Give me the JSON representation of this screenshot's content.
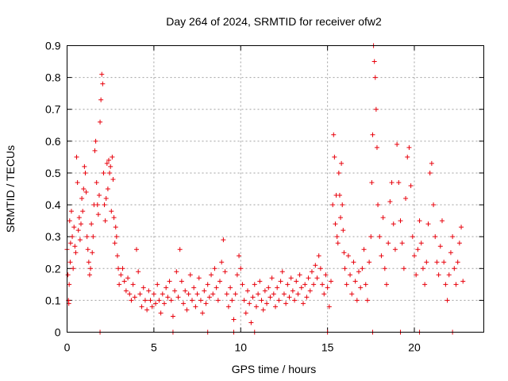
{
  "chart_data": {
    "type": "scatter",
    "title": "Day 264 of 2024, SRMTID for receiver ofw2",
    "xlabel": "GPS time / hours",
    "ylabel": "SRMTID / TECUs",
    "xlim": [
      0,
      24
    ],
    "ylim": [
      0,
      0.9
    ],
    "xticks": [
      0,
      5,
      10,
      15,
      20
    ],
    "yticks": [
      0,
      0.1,
      0.2,
      0.3,
      0.4,
      0.5,
      0.6,
      0.7,
      0.8,
      0.9
    ],
    "grid": true,
    "marker": "+",
    "color": "#e8000b",
    "series": [
      {
        "name": "ofw2",
        "points": [
          [
            0.0,
            0.26
          ],
          [
            0.05,
            0.18
          ],
          [
            0.08,
            0.1
          ],
          [
            0.1,
            0.09
          ],
          [
            0.12,
            0.15
          ],
          [
            0.15,
            0.35
          ],
          [
            0.18,
            0.22
          ],
          [
            0.2,
            0.28
          ],
          [
            0.25,
            0.38
          ],
          [
            0.3,
            0.3
          ],
          [
            0.35,
            0.2
          ],
          [
            0.4,
            0.33
          ],
          [
            0.45,
            0.27
          ],
          [
            0.5,
            0.25
          ],
          [
            0.55,
            0.55
          ],
          [
            0.6,
            0.47
          ],
          [
            0.65,
            0.32
          ],
          [
            0.7,
            0.36
          ],
          [
            0.75,
            0.29
          ],
          [
            0.8,
            0.34
          ],
          [
            0.85,
            0.42
          ],
          [
            0.9,
            0.38
          ],
          [
            0.95,
            0.45
          ],
          [
            1.0,
            0.52
          ],
          [
            1.05,
            0.5
          ],
          [
            1.1,
            0.44
          ],
          [
            1.15,
            0.3
          ],
          [
            1.2,
            0.26
          ],
          [
            1.25,
            0.22
          ],
          [
            1.3,
            0.18
          ],
          [
            1.35,
            0.2
          ],
          [
            1.4,
            0.34
          ],
          [
            1.45,
            0.25
          ],
          [
            1.5,
            0.3
          ],
          [
            1.55,
            0.4
          ],
          [
            1.6,
            0.57
          ],
          [
            1.65,
            0.6
          ],
          [
            1.7,
            0.47
          ],
          [
            1.75,
            0.4
          ],
          [
            1.8,
            0.37
          ],
          [
            1.85,
            0.43
          ],
          [
            1.9,
            0.66
          ],
          [
            1.95,
            0.73
          ],
          [
            2.0,
            0.81
          ],
          [
            2.05,
            0.78
          ],
          [
            2.1,
            0.5
          ],
          [
            2.15,
            0.4
          ],
          [
            2.2,
            0.35
          ],
          [
            2.25,
            0.42
          ],
          [
            2.3,
            0.53
          ],
          [
            2.35,
            0.45
          ],
          [
            2.4,
            0.54
          ],
          [
            2.45,
            0.5
          ],
          [
            2.5,
            0.52
          ],
          [
            2.55,
            0.38
          ],
          [
            2.6,
            0.55
          ],
          [
            2.65,
            0.48
          ],
          [
            2.7,
            0.36
          ],
          [
            2.75,
            0.28
          ],
          [
            2.8,
            0.33
          ],
          [
            2.85,
            0.3
          ],
          [
            2.9,
            0.24
          ],
          [
            2.95,
            0.2
          ],
          [
            3.0,
            0.15
          ],
          [
            3.1,
            0.18
          ],
          [
            3.2,
            0.2
          ],
          [
            3.3,
            0.16
          ],
          [
            3.4,
            0.13
          ],
          [
            3.5,
            0.17
          ],
          [
            3.6,
            0.12
          ],
          [
            3.7,
            0.1
          ],
          [
            3.8,
            0.15
          ],
          [
            3.9,
            0.11
          ],
          [
            4.0,
            0.26
          ],
          [
            4.1,
            0.19
          ],
          [
            4.2,
            0.12
          ],
          [
            4.3,
            0.08
          ],
          [
            4.4,
            0.14
          ],
          [
            4.5,
            0.1
          ],
          [
            4.6,
            0.07
          ],
          [
            4.7,
            0.13
          ],
          [
            4.8,
            0.1
          ],
          [
            4.9,
            0.08
          ],
          [
            5.0,
            0.12
          ],
          [
            5.1,
            0.09
          ],
          [
            5.2,
            0.15
          ],
          [
            5.3,
            0.1
          ],
          [
            5.4,
            0.06
          ],
          [
            5.5,
            0.12
          ],
          [
            5.6,
            0.09
          ],
          [
            5.7,
            0.14
          ],
          [
            5.8,
            0.11
          ],
          [
            5.9,
            0.16
          ],
          [
            6.0,
            0.1
          ],
          [
            6.1,
            0.05
          ],
          [
            6.2,
            0.13
          ],
          [
            6.3,
            0.19
          ],
          [
            6.4,
            0.11
          ],
          [
            6.5,
            0.26
          ],
          [
            6.6,
            0.16
          ],
          [
            6.7,
            0.09
          ],
          [
            6.8,
            0.13
          ],
          [
            6.9,
            0.07
          ],
          [
            7.0,
            0.12
          ],
          [
            7.1,
            0.18
          ],
          [
            7.2,
            0.1
          ],
          [
            7.3,
            0.14
          ],
          [
            7.4,
            0.08
          ],
          [
            7.5,
            0.12
          ],
          [
            7.6,
            0.17
          ],
          [
            7.7,
            0.1
          ],
          [
            7.8,
            0.06
          ],
          [
            7.9,
            0.13
          ],
          [
            8.0,
            0.09
          ],
          [
            8.1,
            0.15
          ],
          [
            8.2,
            0.11
          ],
          [
            8.3,
            0.18
          ],
          [
            8.4,
            0.12
          ],
          [
            8.5,
            0.2
          ],
          [
            8.6,
            0.14
          ],
          [
            8.7,
            0.1
          ],
          [
            8.8,
            0.16
          ],
          [
            8.9,
            0.22
          ],
          [
            9.0,
            0.29
          ],
          [
            9.1,
            0.19
          ],
          [
            9.2,
            0.12
          ],
          [
            9.3,
            0.08
          ],
          [
            9.4,
            0.14
          ],
          [
            9.5,
            0.1
          ],
          [
            9.6,
            0.04
          ],
          [
            9.7,
            0.12
          ],
          [
            9.8,
            0.18
          ],
          [
            9.9,
            0.24
          ],
          [
            10.0,
            0.2
          ],
          [
            10.1,
            0.15
          ],
          [
            10.2,
            0.1
          ],
          [
            10.3,
            0.06
          ],
          [
            10.4,
            0.13
          ],
          [
            10.5,
            0.09
          ],
          [
            10.6,
            0.03
          ],
          [
            10.7,
            0.11
          ],
          [
            10.8,
            0.15
          ],
          [
            10.9,
            0.08
          ],
          [
            11.0,
            0.12
          ],
          [
            11.1,
            0.16
          ],
          [
            11.2,
            0.1
          ],
          [
            11.3,
            0.07
          ],
          [
            11.4,
            0.13
          ],
          [
            11.5,
            0.09
          ],
          [
            11.6,
            0.14
          ],
          [
            11.7,
            0.11
          ],
          [
            11.8,
            0.17
          ],
          [
            11.9,
            0.12
          ],
          [
            12.0,
            0.08
          ],
          [
            12.1,
            0.14
          ],
          [
            12.2,
            0.1
          ],
          [
            12.3,
            0.16
          ],
          [
            12.4,
            0.19
          ],
          [
            12.5,
            0.12
          ],
          [
            12.6,
            0.09
          ],
          [
            12.7,
            0.15
          ],
          [
            12.8,
            0.11
          ],
          [
            12.9,
            0.17
          ],
          [
            13.0,
            0.13
          ],
          [
            13.1,
            0.1
          ],
          [
            13.2,
            0.16
          ],
          [
            13.3,
            0.12
          ],
          [
            13.4,
            0.18
          ],
          [
            13.5,
            0.14
          ],
          [
            13.6,
            0.09
          ],
          [
            13.7,
            0.15
          ],
          [
            13.8,
            0.11
          ],
          [
            13.9,
            0.17
          ],
          [
            14.0,
            0.13
          ],
          [
            14.1,
            0.19
          ],
          [
            14.2,
            0.15
          ],
          [
            14.3,
            0.21
          ],
          [
            14.4,
            0.17
          ],
          [
            14.5,
            0.24
          ],
          [
            14.6,
            0.2
          ],
          [
            14.7,
            0.15
          ],
          [
            14.8,
            0.12
          ],
          [
            14.9,
            0.18
          ],
          [
            15.0,
            0.14
          ],
          [
            15.1,
            0.08
          ],
          [
            15.2,
            0.16
          ],
          [
            15.3,
            0.4
          ],
          [
            15.35,
            0.62
          ],
          [
            15.4,
            0.55
          ],
          [
            15.45,
            0.34
          ],
          [
            15.5,
            0.43
          ],
          [
            15.55,
            0.3
          ],
          [
            15.6,
            0.28
          ],
          [
            15.65,
            0.5
          ],
          [
            15.7,
            0.43
          ],
          [
            15.75,
            0.36
          ],
          [
            15.8,
            0.53
          ],
          [
            15.85,
            0.4
          ],
          [
            15.9,
            0.32
          ],
          [
            15.95,
            0.25
          ],
          [
            16.0,
            0.2
          ],
          [
            16.1,
            0.15
          ],
          [
            16.2,
            0.24
          ],
          [
            16.3,
            0.18
          ],
          [
            16.4,
            0.12
          ],
          [
            16.5,
            0.22
          ],
          [
            16.6,
            0.16
          ],
          [
            16.7,
            0.1
          ],
          [
            16.8,
            0.19
          ],
          [
            16.9,
            0.14
          ],
          [
            17.0,
            0.2
          ],
          [
            17.1,
            0.26
          ],
          [
            17.2,
            0.15
          ],
          [
            17.3,
            0.1
          ],
          [
            17.4,
            0.22
          ],
          [
            17.5,
            0.3
          ],
          [
            17.55,
            0.47
          ],
          [
            17.6,
            0.62
          ],
          [
            17.65,
            0.9
          ],
          [
            17.7,
            0.85
          ],
          [
            17.75,
            0.8
          ],
          [
            17.8,
            0.7
          ],
          [
            17.85,
            0.58
          ],
          [
            17.9,
            0.4
          ],
          [
            18.0,
            0.3
          ],
          [
            18.1,
            0.24
          ],
          [
            18.2,
            0.36
          ],
          [
            18.3,
            0.2
          ],
          [
            18.4,
            0.15
          ],
          [
            18.5,
            0.28
          ],
          [
            18.6,
            0.41
          ],
          [
            18.7,
            0.47
          ],
          [
            18.8,
            0.34
          ],
          [
            18.9,
            0.26
          ],
          [
            19.0,
            0.59
          ],
          [
            19.1,
            0.47
          ],
          [
            19.2,
            0.35
          ],
          [
            19.3,
            0.28
          ],
          [
            19.4,
            0.2
          ],
          [
            19.5,
            0.42
          ],
          [
            19.6,
            0.55
          ],
          [
            19.7,
            0.58
          ],
          [
            19.8,
            0.46
          ],
          [
            19.9,
            0.3
          ],
          [
            20.0,
            0.24
          ],
          [
            20.1,
            0.18
          ],
          [
            20.2,
            0.26
          ],
          [
            20.3,
            0.35
          ],
          [
            20.4,
            0.28
          ],
          [
            20.5,
            0.2
          ],
          [
            20.6,
            0.15
          ],
          [
            20.7,
            0.22
          ],
          [
            20.8,
            0.34
          ],
          [
            20.9,
            0.5
          ],
          [
            21.0,
            0.53
          ],
          [
            21.1,
            0.4
          ],
          [
            21.2,
            0.3
          ],
          [
            21.3,
            0.22
          ],
          [
            21.4,
            0.18
          ],
          [
            21.5,
            0.27
          ],
          [
            21.6,
            0.35
          ],
          [
            21.7,
            0.22
          ],
          [
            21.8,
            0.15
          ],
          [
            21.9,
            0.1
          ],
          [
            22.0,
            0.18
          ],
          [
            22.1,
            0.25
          ],
          [
            22.2,
            0.3
          ],
          [
            22.3,
            0.2
          ],
          [
            22.4,
            0.15
          ],
          [
            22.5,
            0.22
          ],
          [
            22.6,
            0.28
          ],
          [
            22.7,
            0.33
          ],
          [
            22.8,
            0.16
          ],
          [
            1.9,
            0.0
          ],
          [
            6.1,
            0.0
          ],
          [
            8.1,
            0.0
          ],
          [
            9.6,
            0.0
          ],
          [
            10.8,
            0.0
          ],
          [
            15.0,
            0.0
          ],
          [
            17.6,
            0.0
          ],
          [
            19.2,
            0.0
          ],
          [
            20.3,
            0.0
          ],
          [
            22.2,
            0.0
          ]
        ]
      }
    ]
  }
}
